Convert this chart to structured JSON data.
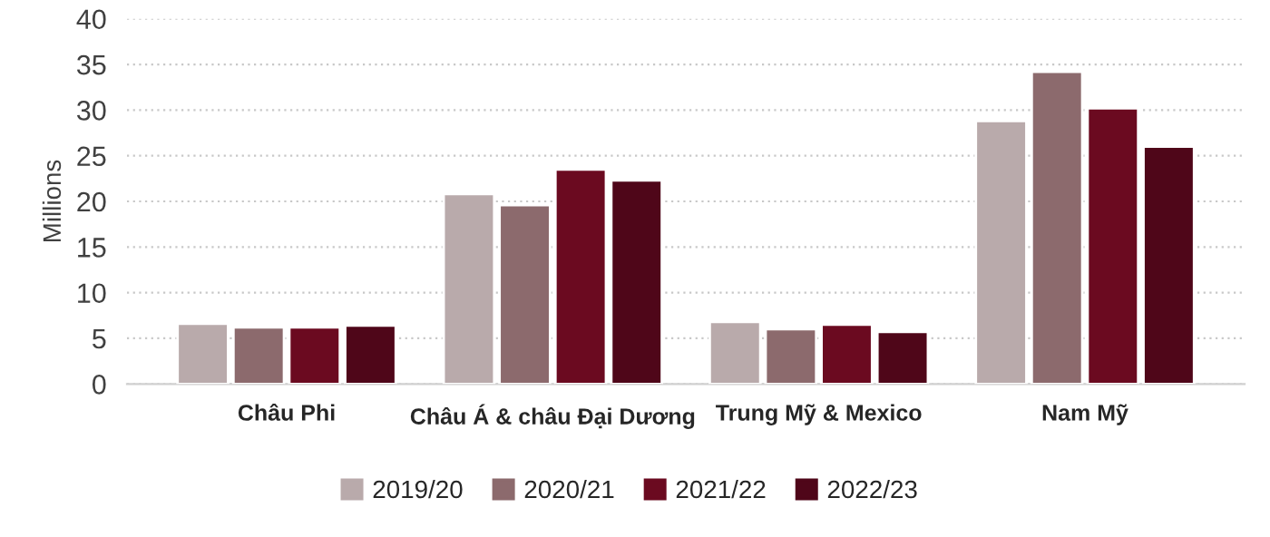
{
  "chart_data": {
    "type": "bar",
    "ylabel": "Millions",
    "categories": [
      "Châu Phi",
      "Châu Á & châu Đại Dương",
      "Trung Mỹ & Mexico",
      "Nam Mỹ"
    ],
    "series": [
      {
        "name": "2019/20",
        "color": "#b9aaab",
        "values": [
          6.6,
          20.8,
          6.8,
          28.8
        ]
      },
      {
        "name": "2020/21",
        "color": "#8c6a6d",
        "values": [
          6.2,
          19.6,
          6.0,
          34.2
        ]
      },
      {
        "name": "2021/22",
        "color": "#6b0a20",
        "values": [
          6.2,
          23.5,
          6.5,
          30.2
        ]
      },
      {
        "name": "2022/23",
        "color": "#4f0619",
        "values": [
          6.4,
          22.3,
          5.7,
          26.0
        ]
      }
    ],
    "ylim": [
      0,
      40
    ],
    "yticks": [
      0,
      5,
      10,
      15,
      20,
      25,
      30,
      35,
      40
    ],
    "grid": "y",
    "legend": "bottom"
  }
}
